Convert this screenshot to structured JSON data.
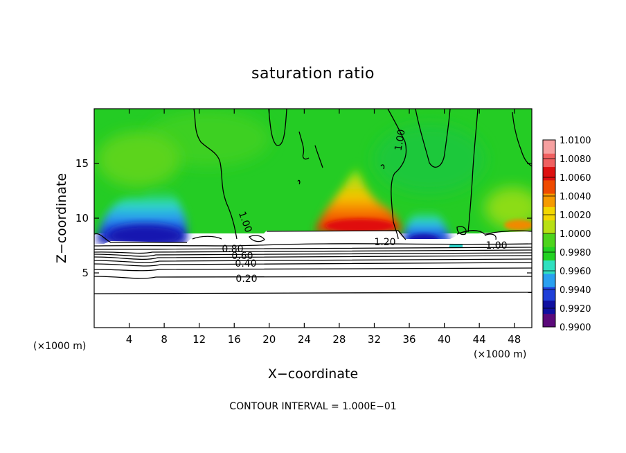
{
  "chart_data": {
    "type": "heatmap",
    "title": "saturation ratio",
    "xlabel": "X−coordinate",
    "ylabel": "Z−coordinate",
    "x_unit_label": "(×1000 m)",
    "z_unit_label": "(×1000 m)",
    "xlim": [
      0,
      50
    ],
    "ylim": [
      0,
      20
    ],
    "x_ticks": [
      "4",
      "8",
      "12",
      "16",
      "20",
      "24",
      "28",
      "32",
      "36",
      "40",
      "44",
      "48"
    ],
    "y_ticks": [
      "5",
      "10",
      "15"
    ],
    "colorbar": {
      "labels": [
        "1.0100",
        "1.0080",
        "1.0060",
        "1.0040",
        "1.0020",
        "1.0000",
        "0.9980",
        "0.9960",
        "0.9940",
        "0.9920",
        "0.9900"
      ],
      "min": 0.99,
      "max": 1.01,
      "colors": [
        "#5b0a7a",
        "#1010a0",
        "#1f3fd8",
        "#2aa0f0",
        "#2fe0c0",
        "#22d222",
        "#4dd41c",
        "#b8e014",
        "#f2d600",
        "#f59a00",
        "#ef4a00",
        "#dd1010",
        "#f06060",
        "#f6a0a0"
      ]
    },
    "contour_labels": [
      "1.00",
      "1.00",
      "1.00",
      "0.80",
      "0.60",
      "0.40",
      "0.20",
      "1.20"
    ],
    "footnote": "CONTOUR INTERVAL = 1.000E−01",
    "colors": {
      "background_field": "#22cc22",
      "low_supersat": "#1f3fd8",
      "high_supersat": "#ef4a00",
      "contour_line": "#000000"
    }
  }
}
